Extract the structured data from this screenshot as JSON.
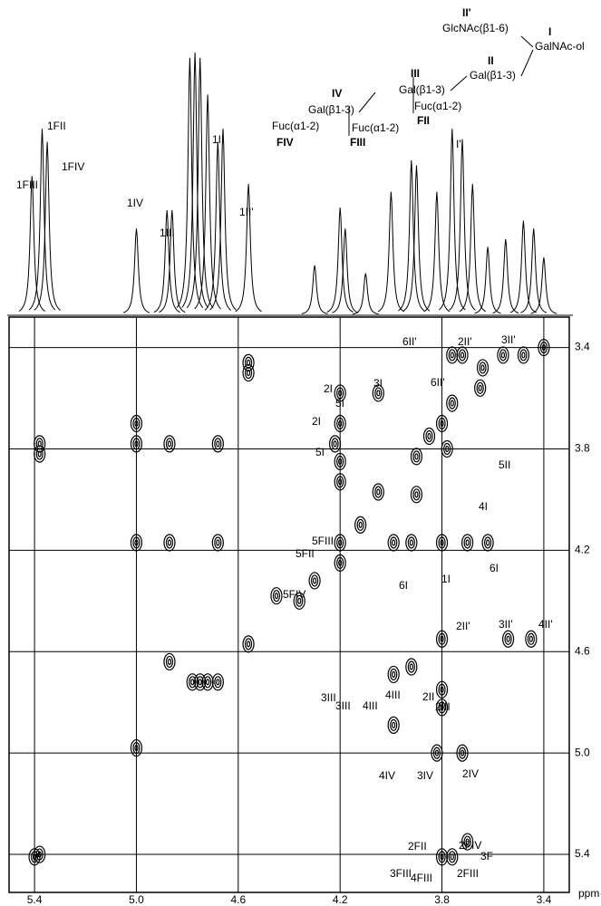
{
  "chart_data": {
    "type": "contour",
    "xlim": [
      5.5,
      3.3
    ],
    "ylim": [
      3.28,
      5.55
    ],
    "xticks": [
      5.4,
      {
        "value": 5,
        "label": "5.0"
      },
      4.6,
      4.2,
      3.8,
      3.4
    ],
    "yticks": [
      3.4,
      3.8,
      4.2,
      4.6,
      {
        "value": 5,
        "label": "5.0"
      },
      5.4
    ],
    "x_unit": "ppm",
    "grid": true,
    "color": "#000000",
    "spectrum": {
      "x": [
        5.41,
        5.37,
        5.35,
        5.0,
        4.88,
        4.86,
        4.79,
        4.77,
        4.75,
        4.72,
        4.68,
        4.66,
        4.56,
        4.3,
        4.2,
        4.18,
        4.1,
        4.0,
        3.92,
        3.9,
        3.82,
        3.76,
        3.72,
        3.68,
        3.62,
        3.55,
        3.48,
        3.44,
        3.4
      ],
      "values": [
        53,
        71,
        66,
        33,
        40,
        40,
        98,
        100,
        98,
        84,
        66,
        71,
        50,
        19,
        41,
        33,
        16,
        47,
        59,
        57,
        47,
        71,
        67,
        50,
        26,
        29,
        36,
        33,
        22
      ]
    },
    "peaks": {
      "x": [
        5.4,
        5.38,
        5.38,
        5.38,
        5.0,
        5.0,
        5.0,
        5.0,
        4.87,
        4.87,
        4.87,
        4.78,
        4.75,
        4.72,
        4.68,
        4.68,
        4.68,
        4.56,
        4.56,
        4.56,
        4.36,
        4.3,
        4.22,
        4.2,
        4.2,
        4.2,
        4.2,
        4.2,
        4.2,
        4.05,
        4.05,
        3.99,
        3.99,
        3.99,
        3.92,
        3.92,
        3.9,
        3.85,
        3.8,
        3.78,
        3.76,
        3.8,
        3.8,
        3.8,
        3.8,
        3.82,
        3.72,
        3.76,
        3.72,
        3.76,
        3.8,
        3.7,
        3.7,
        3.62,
        3.56,
        3.48,
        3.54,
        3.45,
        3.4,
        3.64,
        3.65,
        3.9,
        4.12,
        4.45
      ],
      "y": [
        5.41,
        5.4,
        3.78,
        3.82,
        3.7,
        3.78,
        4.17,
        4.98,
        4.17,
        4.64,
        3.78,
        4.72,
        4.72,
        4.72,
        4.17,
        3.78,
        4.72,
        3.46,
        3.5,
        4.57,
        4.4,
        4.32,
        3.78,
        3.58,
        3.7,
        3.85,
        3.93,
        4.17,
        4.25,
        3.58,
        3.97,
        4.17,
        4.69,
        4.89,
        4.17,
        4.66,
        3.83,
        3.75,
        3.7,
        3.8,
        3.62,
        4.17,
        4.55,
        4.75,
        4.82,
        5.0,
        5.0,
        3.43,
        3.43,
        5.41,
        5.41,
        5.35,
        4.17,
        4.17,
        3.43,
        3.43,
        4.55,
        4.55,
        3.4,
        3.48,
        3.56,
        3.98,
        4.1,
        4.38
      ]
    },
    "spectrum_labels": [
      "1FIII",
      "1FII",
      "1FIV",
      "1IV",
      "1III",
      "1II",
      "1II'",
      "I'"
    ],
    "peak_labels": [
      "6II'",
      "2II'",
      "3II'",
      "6II'",
      "2I",
      "5I",
      "3I",
      "2I",
      "5I",
      "5II",
      "4I",
      "5FII",
      "5FIII",
      "5FIV",
      "6I",
      "1I",
      "6I",
      "2II'",
      "3II'",
      "4II'",
      "3III",
      "3III",
      "4III",
      "4III",
      "2II",
      "2III",
      "4IV",
      "3IV",
      "2IV",
      "2FII",
      "2FIV",
      "3F",
      "3FIII",
      "4FIII",
      "2FIII"
    ],
    "structure": [
      "II'",
      "GlcNAc(β1-6)",
      "I",
      "GalNAc-ol",
      "II",
      "Gal(β1-3)",
      "III",
      "Gal(β1-3)",
      "Fuc(α1-2)",
      "FII",
      "IV",
      "Gal(β1-3)",
      "Fuc(α1-2)",
      "FIII",
      "Fuc(α1-2)",
      "FIV"
    ]
  }
}
